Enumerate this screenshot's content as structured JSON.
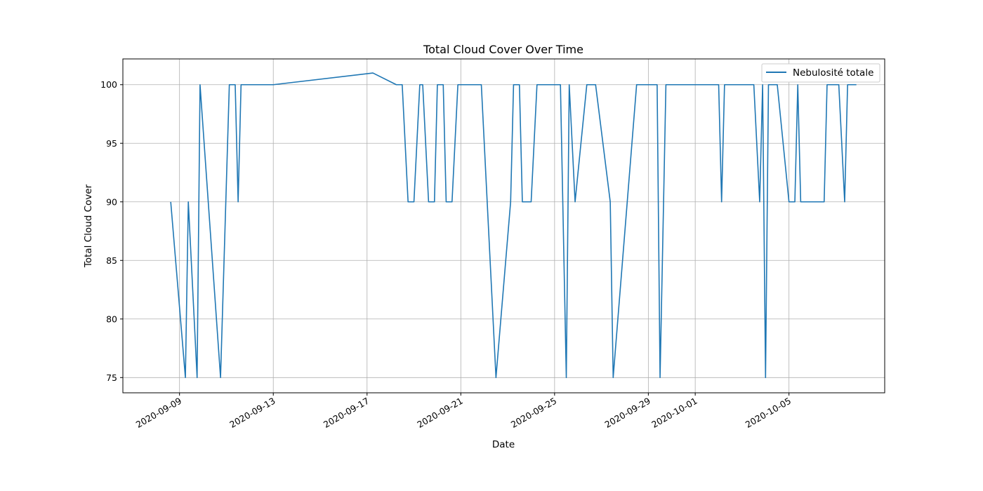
{
  "chart_data": {
    "type": "line",
    "title": "Total Cloud Cover Over Time",
    "xlabel": "Date",
    "ylabel": "Total Cloud Cover",
    "x_axis": "date",
    "xlim": [
      "2020-09-06T14:00",
      "2020-10-09T02:00"
    ],
    "ylim": [
      73.7,
      102.2
    ],
    "yticks": [
      75,
      80,
      85,
      90,
      95,
      100
    ],
    "xticks": [
      "2020-09-09",
      "2020-09-13",
      "2020-09-17",
      "2020-09-21",
      "2020-09-25",
      "2020-09-29",
      "2020-10-01",
      "2020-10-05"
    ],
    "grid": true,
    "legend_position": "top-right",
    "colors": {
      "series": "#1f77b4",
      "grid": "#b0b0b0",
      "axis": "#000000"
    },
    "series": [
      {
        "name": "Nebulosité totale",
        "points": [
          [
            "2020-09-08T15:00",
            90
          ],
          [
            "2020-09-09T06:00",
            75
          ],
          [
            "2020-09-09T09:00",
            90
          ],
          [
            "2020-09-09T18:00",
            75
          ],
          [
            "2020-09-09T21:00",
            100
          ],
          [
            "2020-09-10T18:00",
            75
          ],
          [
            "2020-09-11T03:00",
            100
          ],
          [
            "2020-09-11T09:00",
            100
          ],
          [
            "2020-09-11T12:00",
            90
          ],
          [
            "2020-09-11T15:00",
            100
          ],
          [
            "2020-09-12T00:00",
            100
          ],
          [
            "2020-09-13T00:00",
            100
          ],
          [
            "2020-09-17T06:00",
            101
          ],
          [
            "2020-09-18T06:00",
            100
          ],
          [
            "2020-09-18T12:00",
            100
          ],
          [
            "2020-09-18T18:00",
            90
          ],
          [
            "2020-09-19T00:00",
            90
          ],
          [
            "2020-09-19T06:00",
            100
          ],
          [
            "2020-09-19T09:00",
            100
          ],
          [
            "2020-09-19T15:00",
            90
          ],
          [
            "2020-09-19T21:00",
            90
          ],
          [
            "2020-09-20T00:00",
            100
          ],
          [
            "2020-09-20T06:00",
            100
          ],
          [
            "2020-09-20T09:00",
            90
          ],
          [
            "2020-09-20T15:00",
            90
          ],
          [
            "2020-09-20T21:00",
            100
          ],
          [
            "2020-09-21T00:00",
            100
          ],
          [
            "2020-09-21T21:00",
            100
          ],
          [
            "2020-09-22T12:00",
            75
          ],
          [
            "2020-09-23T03:00",
            90
          ],
          [
            "2020-09-23T06:00",
            100
          ],
          [
            "2020-09-23T12:00",
            100
          ],
          [
            "2020-09-23T15:00",
            90
          ],
          [
            "2020-09-24T00:00",
            90
          ],
          [
            "2020-09-24T06:00",
            100
          ],
          [
            "2020-09-25T06:00",
            100
          ],
          [
            "2020-09-25T12:00",
            75
          ],
          [
            "2020-09-25T15:00",
            100
          ],
          [
            "2020-09-25T21:00",
            90
          ],
          [
            "2020-09-26T09:00",
            100
          ],
          [
            "2020-09-26T12:00",
            100
          ],
          [
            "2020-09-26T18:00",
            100
          ],
          [
            "2020-09-27T09:00",
            90
          ],
          [
            "2020-09-27T12:00",
            75
          ],
          [
            "2020-09-28T12:00",
            100
          ],
          [
            "2020-09-28T18:00",
            100
          ],
          [
            "2020-09-29T09:00",
            100
          ],
          [
            "2020-09-29T12:00",
            75
          ],
          [
            "2020-09-29T18:00",
            100
          ],
          [
            "2020-10-01T00:00",
            100
          ],
          [
            "2020-10-01T12:00",
            100
          ],
          [
            "2020-10-02T00:00",
            100
          ],
          [
            "2020-10-02T03:00",
            90
          ],
          [
            "2020-10-02T06:00",
            100
          ],
          [
            "2020-10-02T12:00",
            100
          ],
          [
            "2020-10-03T12:00",
            100
          ],
          [
            "2020-10-03T18:00",
            90
          ],
          [
            "2020-10-03T21:00",
            100
          ],
          [
            "2020-10-04T00:00",
            75
          ],
          [
            "2020-10-04T03:00",
            100
          ],
          [
            "2020-10-04T09:00",
            100
          ],
          [
            "2020-10-04T12:00",
            100
          ],
          [
            "2020-10-05T00:00",
            90
          ],
          [
            "2020-10-05T06:00",
            90
          ],
          [
            "2020-10-05T09:00",
            100
          ],
          [
            "2020-10-05T12:00",
            90
          ],
          [
            "2020-10-06T12:00",
            90
          ],
          [
            "2020-10-06T15:00",
            100
          ],
          [
            "2020-10-07T03:00",
            100
          ],
          [
            "2020-10-07T09:00",
            90
          ],
          [
            "2020-10-07T12:00",
            100
          ],
          [
            "2020-10-07T21:00",
            100
          ]
        ]
      }
    ]
  }
}
